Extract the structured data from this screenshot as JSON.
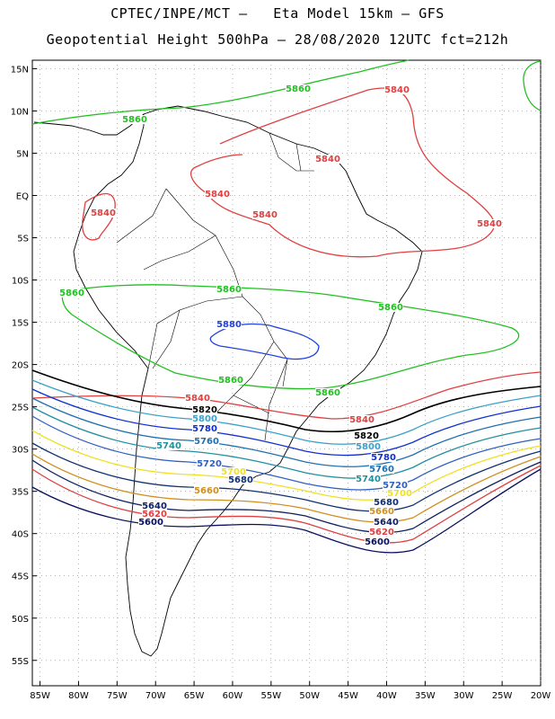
{
  "title_line1": "CPTEC/INPE/MCT –   Eta Model 15km – GFS",
  "title_line2": "Geopotential Height 500hPa – 28/08/2020 12UTC fct=212h",
  "map": {
    "lon_range": [
      -86,
      -20
    ],
    "lat_range": [
      -58,
      16
    ],
    "lat_ticks": [
      "15N",
      "10N",
      "5N",
      "EQ",
      "5S",
      "10S",
      "15S",
      "20S",
      "25S",
      "30S",
      "35S",
      "40S",
      "45S",
      "50S",
      "55S"
    ],
    "lon_ticks": [
      "85W",
      "80W",
      "75W",
      "70W",
      "65W",
      "60W",
      "55W",
      "50W",
      "45W",
      "40W",
      "35W",
      "30W",
      "25W",
      "20W"
    ],
    "grid": true
  },
  "contours": [
    {
      "label": "5880",
      "color": "#2040e0"
    },
    {
      "label": "5860",
      "color": "#20c020"
    },
    {
      "label": "5840",
      "color": "#e04040"
    },
    {
      "label": "5820",
      "color": "#000000"
    },
    {
      "label": "5800",
      "color": "#3aa0c8"
    },
    {
      "label": "5780",
      "color": "#1030d0"
    },
    {
      "label": "5760",
      "color": "#2070b0"
    },
    {
      "label": "5740",
      "color": "#2090a0"
    },
    {
      "label": "5720",
      "color": "#3060c0"
    },
    {
      "label": "5700",
      "color": "#f0e020"
    },
    {
      "label": "5680",
      "color": "#103070"
    },
    {
      "label": "5660",
      "color": "#d09020"
    },
    {
      "label": "5640",
      "color": "#102060"
    },
    {
      "label": "5620",
      "color": "#e04040"
    },
    {
      "label": "5600",
      "color": "#0a1060"
    }
  ]
}
